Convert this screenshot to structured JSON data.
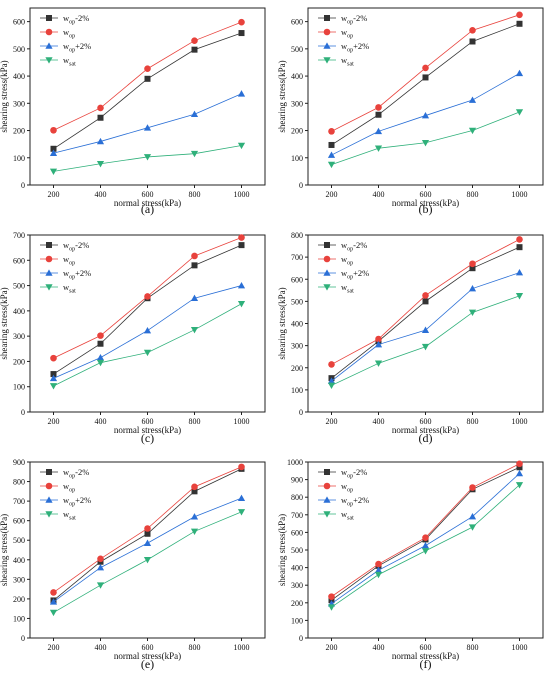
{
  "figure": {
    "panel_labels": [
      "(a)",
      "(b)",
      "(c)",
      "(d)",
      "(e)",
      "(f)"
    ],
    "legend_labels": [
      {
        "base": "w",
        "sub": "op",
        "suffix": "-2%"
      },
      {
        "base": "w",
        "sub": "op",
        "suffix": ""
      },
      {
        "base": "w",
        "sub": "op",
        "suffix": "+2%"
      },
      {
        "base": "w",
        "sub": "sat",
        "suffix": ""
      }
    ],
    "series_styles": [
      {
        "color": "#333333",
        "marker": "square"
      },
      {
        "color": "#e8423c",
        "marker": "circle"
      },
      {
        "color": "#2a6fd6",
        "marker": "triangle-up"
      },
      {
        "color": "#2fb07a",
        "marker": "triangle-down"
      }
    ]
  },
  "chart_data": [
    {
      "type": "line",
      "panel": "(a)",
      "xlabel": "normal stress(kPa)",
      "ylabel": "shearing stress(kPa)",
      "x": [
        200,
        400,
        600,
        800,
        1000
      ],
      "xlim": [
        100,
        1100
      ],
      "ylim": [
        0,
        650
      ],
      "yticks": [
        0,
        100,
        200,
        300,
        400,
        500,
        600
      ],
      "legend_position": "top-left",
      "series": [
        {
          "name": "wop-2%",
          "values": [
            133,
            247,
            390,
            497,
            558
          ]
        },
        {
          "name": "wop",
          "values": [
            201,
            283,
            427,
            530,
            598
          ]
        },
        {
          "name": "wop+2%",
          "values": [
            117,
            160,
            210,
            260,
            335
          ]
        },
        {
          "name": "wsat",
          "values": [
            50,
            78,
            103,
            115,
            145
          ]
        }
      ]
    },
    {
      "type": "line",
      "panel": "(b)",
      "xlabel": "normal stress(kPa)",
      "ylabel": "shearing stress(kPa)",
      "x": [
        200,
        400,
        600,
        800,
        1000
      ],
      "xlim": [
        100,
        1100
      ],
      "ylim": [
        0,
        650
      ],
      "yticks": [
        0,
        100,
        200,
        300,
        400,
        500,
        600
      ],
      "legend_position": "top-left",
      "series": [
        {
          "name": "wop-2%",
          "values": [
            147,
            258,
            395,
            527,
            592
          ]
        },
        {
          "name": "wop",
          "values": [
            197,
            285,
            430,
            568,
            625
          ]
        },
        {
          "name": "wop+2%",
          "values": [
            110,
            197,
            255,
            312,
            410
          ]
        },
        {
          "name": "wsat",
          "values": [
            75,
            135,
            155,
            200,
            268
          ]
        }
      ]
    },
    {
      "type": "line",
      "panel": "(c)",
      "xlabel": "normal stress(kPa)",
      "ylabel": "shearing stress(kPa)",
      "x": [
        200,
        400,
        600,
        800,
        1000
      ],
      "xlim": [
        100,
        1100
      ],
      "ylim": [
        0,
        700
      ],
      "yticks": [
        0,
        100,
        200,
        300,
        400,
        500,
        600,
        700
      ],
      "legend_position": "top-left",
      "series": [
        {
          "name": "wop-2%",
          "values": [
            150,
            270,
            450,
            580,
            660
          ]
        },
        {
          "name": "wop",
          "values": [
            213,
            302,
            457,
            617,
            690
          ]
        },
        {
          "name": "wop+2%",
          "values": [
            133,
            215,
            322,
            450,
            500
          ]
        },
        {
          "name": "wsat",
          "values": [
            103,
            195,
            235,
            325,
            428
          ]
        }
      ]
    },
    {
      "type": "line",
      "panel": "(d)",
      "xlabel": "normal stress(kPa)",
      "ylabel": "shearing stress(kPa)",
      "x": [
        200,
        400,
        600,
        800,
        1000
      ],
      "xlim": [
        100,
        1100
      ],
      "ylim": [
        0,
        800
      ],
      "yticks": [
        0,
        100,
        200,
        300,
        400,
        500,
        600,
        700,
        800
      ],
      "legend_position": "top-left",
      "series": [
        {
          "name": "wop-2%",
          "values": [
            153,
            320,
            500,
            650,
            745
          ]
        },
        {
          "name": "wop",
          "values": [
            215,
            330,
            527,
            670,
            780
          ]
        },
        {
          "name": "wop+2%",
          "values": [
            140,
            305,
            370,
            558,
            630
          ]
        },
        {
          "name": "wsat",
          "values": [
            120,
            220,
            295,
            450,
            525
          ]
        }
      ]
    },
    {
      "type": "line",
      "panel": "(e)",
      "xlabel": "normal stress(kPa)",
      "ylabel": "shearing stress(kPa)",
      "x": [
        200,
        400,
        600,
        800,
        1000
      ],
      "xlim": [
        100,
        1100
      ],
      "ylim": [
        0,
        900
      ],
      "yticks": [
        0,
        100,
        200,
        300,
        400,
        500,
        600,
        700,
        800,
        900
      ],
      "legend_position": "top-left",
      "series": [
        {
          "name": "wop-2%",
          "values": [
            192,
            390,
            533,
            750,
            865
          ]
        },
        {
          "name": "wop",
          "values": [
            233,
            405,
            560,
            773,
            875
          ]
        },
        {
          "name": "wop+2%",
          "values": [
            185,
            360,
            485,
            620,
            715
          ]
        },
        {
          "name": "wsat",
          "values": [
            130,
            270,
            400,
            545,
            645
          ]
        }
      ]
    },
    {
      "type": "line",
      "panel": "(f)",
      "xlabel": "normal stress(kPa)",
      "ylabel": "shearing stress(kPa)",
      "x": [
        200,
        400,
        600,
        800,
        1000
      ],
      "xlim": [
        100,
        1100
      ],
      "ylim": [
        0,
        1000
      ],
      "yticks": [
        0,
        100,
        200,
        300,
        400,
        500,
        600,
        700,
        800,
        900,
        1000
      ],
      "legend_position": "top-left",
      "series": [
        {
          "name": "wop-2%",
          "values": [
            215,
            410,
            560,
            845,
            970
          ]
        },
        {
          "name": "wop",
          "values": [
            235,
            420,
            570,
            855,
            990
          ]
        },
        {
          "name": "wop+2%",
          "values": [
            195,
            385,
            525,
            690,
            935
          ]
        },
        {
          "name": "wsat",
          "values": [
            175,
            360,
            495,
            630,
            870
          ]
        }
      ]
    }
  ]
}
